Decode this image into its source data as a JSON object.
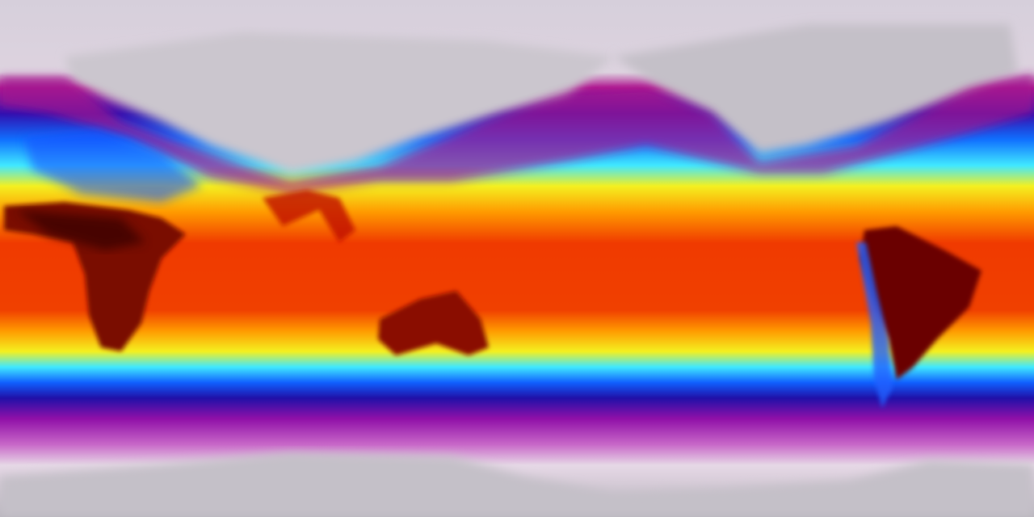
{
  "map": {
    "projection": "equirectangular",
    "colormap": [
      "#d8d2dc",
      "#b01890",
      "#2810b8",
      "#1070ff",
      "#40e8ff",
      "#f4f020",
      "#ff9a00",
      "#f03000",
      "#a00000",
      "#300000"
    ],
    "colors": {
      "polar_land": "#c8c4cc",
      "hot_land": "#5a0000",
      "ocean_warm": "#f03a00"
    }
  }
}
